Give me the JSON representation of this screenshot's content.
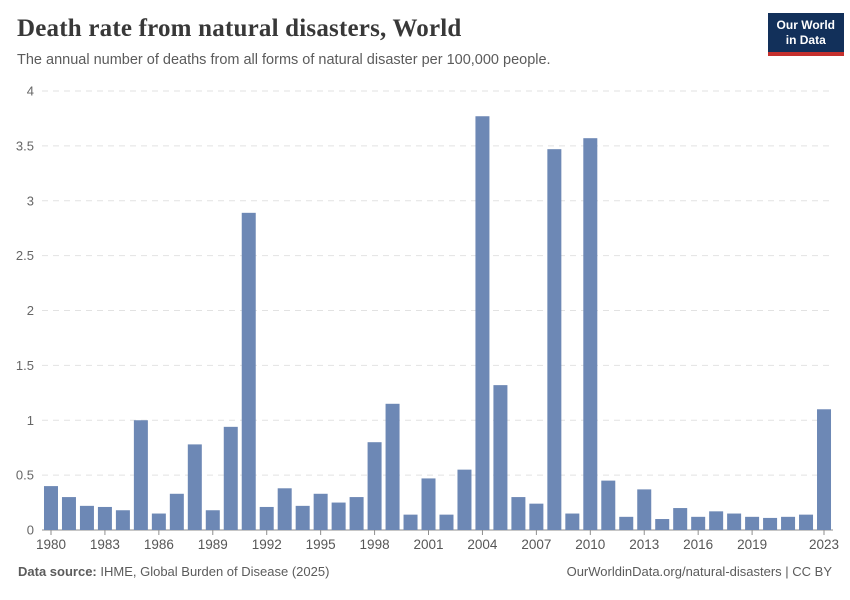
{
  "header": {
    "title": "Death rate from natural disasters, World",
    "subtitle": "The annual number of deaths from all forms of natural disaster per 100,000 people."
  },
  "logo": {
    "line1": "Our World",
    "line2": "in Data",
    "background_color": "#12305a",
    "accent_color": "#c5302d"
  },
  "footer": {
    "source_label": "Data source:",
    "source_text": " IHME, Global Burden of Disease (2025)",
    "link_text": "OurWorldinData.org/natural-disasters | CC BY"
  },
  "chart_data": {
    "type": "bar",
    "title": "Death rate from natural disasters, World",
    "subtitle": "The annual number of deaths from all forms of natural disaster per 100,000 people.",
    "xlabel": "",
    "ylabel": "",
    "ylim": [
      0,
      4
    ],
    "yticks": [
      0,
      0.5,
      1,
      1.5,
      2,
      2.5,
      3,
      3.5,
      4
    ],
    "xtick_years": [
      1980,
      1983,
      1986,
      1989,
      1992,
      1995,
      1998,
      2001,
      2004,
      2007,
      2010,
      2013,
      2016,
      2019,
      2023
    ],
    "grid": "dashed-horizontal",
    "legend": "none",
    "bar_color": "#6d88b5",
    "gridline_color": "#e2e2e2",
    "axis_line_color": "#8e8e8e",
    "years": [
      1980,
      1981,
      1982,
      1983,
      1984,
      1985,
      1986,
      1987,
      1988,
      1989,
      1990,
      1991,
      1992,
      1993,
      1994,
      1995,
      1996,
      1997,
      1998,
      1999,
      2000,
      2001,
      2002,
      2003,
      2004,
      2005,
      2006,
      2007,
      2008,
      2009,
      2010,
      2011,
      2012,
      2013,
      2014,
      2015,
      2016,
      2017,
      2018,
      2019,
      2020,
      2021,
      2022,
      2023
    ],
    "values": [
      0.4,
      0.3,
      0.22,
      0.21,
      0.18,
      1.0,
      0.15,
      0.33,
      0.78,
      0.18,
      0.94,
      2.89,
      0.21,
      0.38,
      0.22,
      0.33,
      0.25,
      0.3,
      0.8,
      1.15,
      0.14,
      0.47,
      0.14,
      0.55,
      3.77,
      1.32,
      0.3,
      0.24,
      3.47,
      0.15,
      3.57,
      0.45,
      0.12,
      0.37,
      0.1,
      0.2,
      0.12,
      0.17,
      0.15,
      0.12,
      0.11,
      0.12,
      0.14,
      1.1
    ]
  }
}
